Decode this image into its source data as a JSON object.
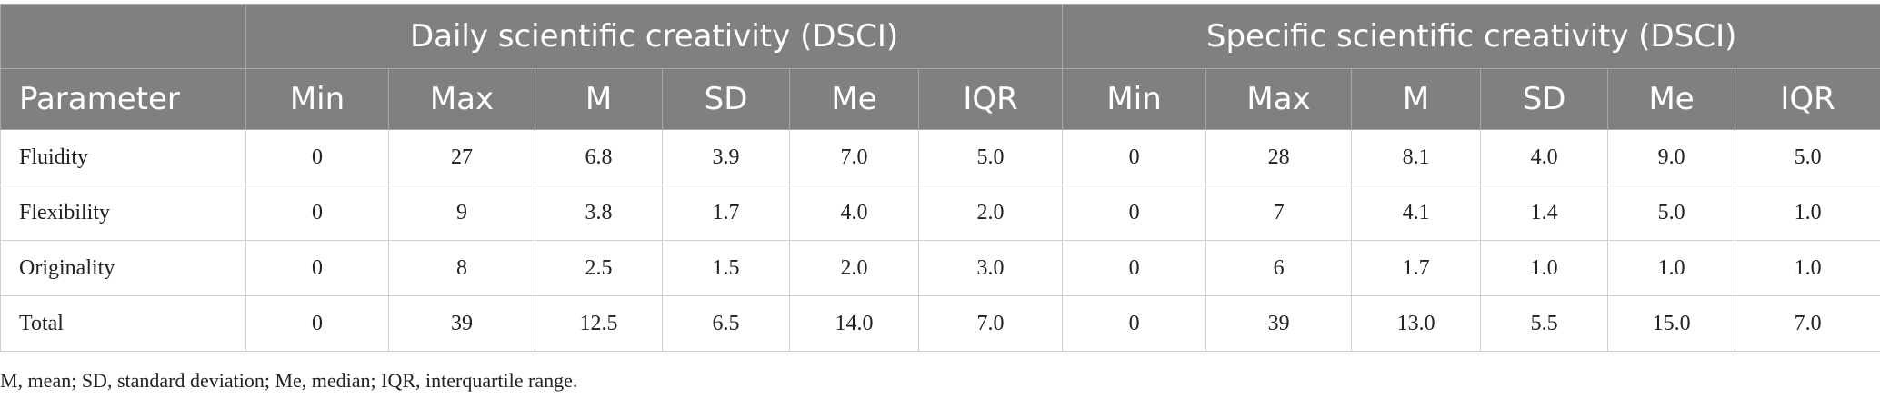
{
  "table": {
    "group_headers": [
      "Daily scientific creativity (DSCI)",
      "Specific scientific creativity (DSCI)"
    ],
    "parameter_header": "Parameter",
    "columns": [
      "Min",
      "Max",
      "M",
      "SD",
      "Me",
      "IQR",
      "Min",
      "Max",
      "M",
      "SD",
      "Me",
      "IQR"
    ],
    "rows": [
      {
        "label": "Fluidity",
        "values": [
          "0",
          "27",
          "6.8",
          "3.9",
          "7.0",
          "5.0",
          "0",
          "28",
          "8.1",
          "4.0",
          "9.0",
          "5.0"
        ]
      },
      {
        "label": "Flexibility",
        "values": [
          "0",
          "9",
          "3.8",
          "1.7",
          "4.0",
          "2.0",
          "0",
          "7",
          "4.1",
          "1.4",
          "5.0",
          "1.0"
        ]
      },
      {
        "label": "Originality",
        "values": [
          "0",
          "8",
          "2.5",
          "1.5",
          "2.0",
          "3.0",
          "0",
          "6",
          "1.7",
          "1.0",
          "1.0",
          "1.0"
        ]
      },
      {
        "label": "Total",
        "values": [
          "0",
          "39",
          "12.5",
          "6.5",
          "14.0",
          "7.0",
          "0",
          "39",
          "13.0",
          "5.5",
          "15.0",
          "7.0"
        ]
      }
    ]
  },
  "footnote": "M, mean; SD, standard deviation; Me, median; IQR, interquartile range.",
  "colors": {
    "header_bg": "#808080",
    "header_text": "#ffffff",
    "border": "#cfcfcf"
  }
}
